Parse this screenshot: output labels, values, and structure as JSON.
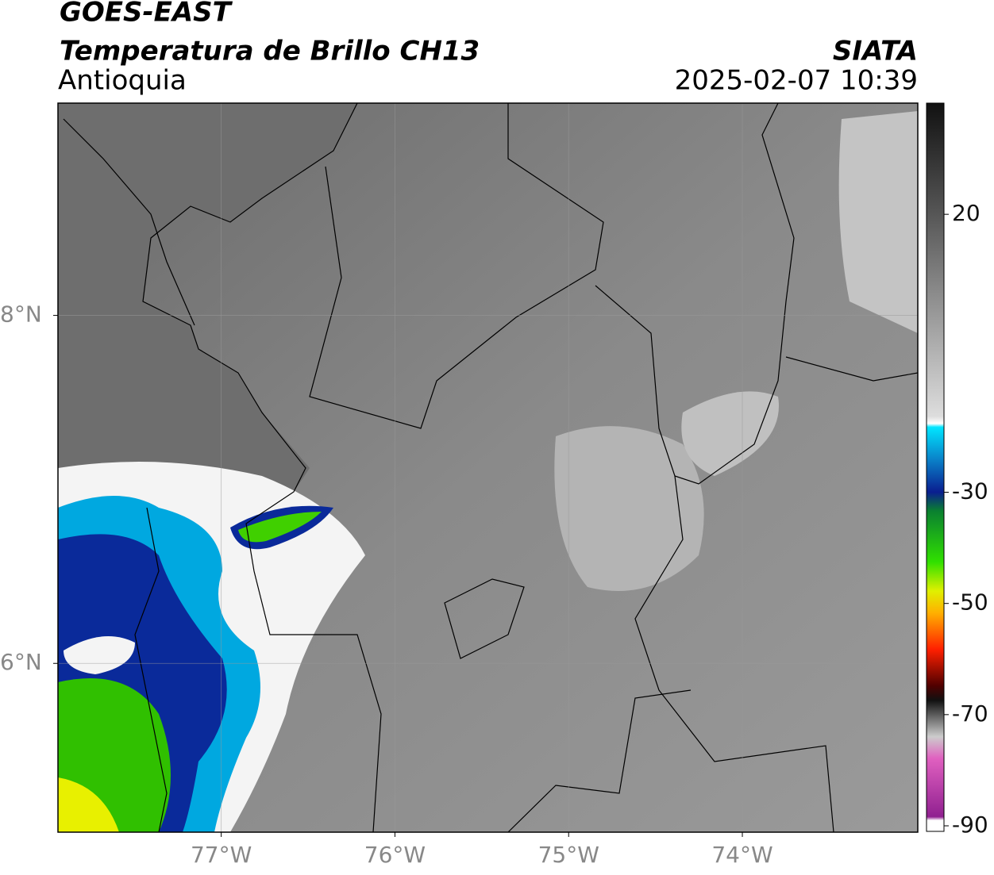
{
  "header": {
    "title": "GOES-EAST",
    "subtitle": "Temperatura de Brillo CH13",
    "region": "Antioquia",
    "source": "SIATA",
    "datetime": "2025-02-07 10:39"
  },
  "map": {
    "xlim": [
      -77.94,
      -72.99
    ],
    "ylim": [
      5.03,
      9.22
    ],
    "xticks": [
      {
        "value": -77,
        "label": "77°W"
      },
      {
        "value": -76,
        "label": "76°W"
      },
      {
        "value": -75,
        "label": "75°W"
      },
      {
        "value": -74,
        "label": "74°W"
      }
    ],
    "yticks": [
      {
        "value": 6,
        "label": "6°N"
      },
      {
        "value": 8,
        "label": "8°N"
      }
    ],
    "grid": true
  },
  "colorbar": {
    "lim": [
      -91,
      40
    ],
    "ticks": [
      20,
      -30,
      -50,
      -70,
      -90
    ]
  }
}
